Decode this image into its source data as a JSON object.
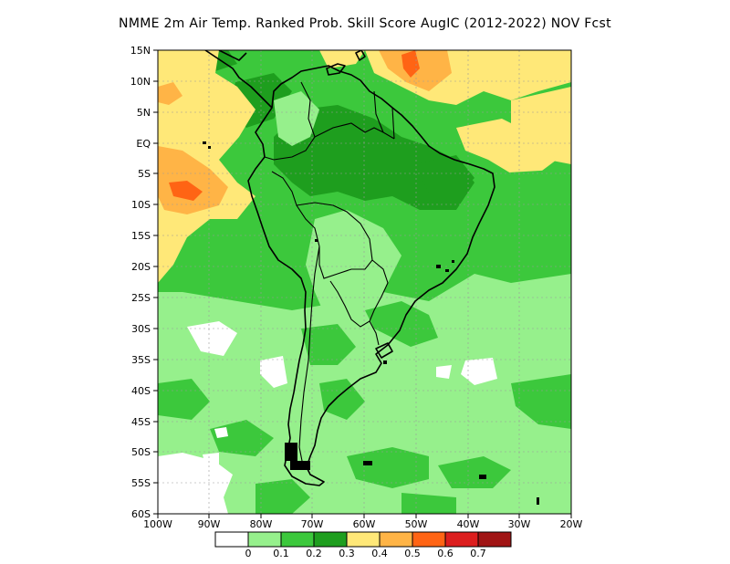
{
  "title": "NMME  2m Air Temp. Ranked Prob. Skill Score AugIC (2012-2022) NOV Fcst",
  "lat_labels": [
    "15N",
    "10N",
    "5N",
    "EQ",
    "5S",
    "10S",
    "15S",
    "20S",
    "25S",
    "30S",
    "35S",
    "40S",
    "45S",
    "50S",
    "55S",
    "60S"
  ],
  "lon_labels": [
    "100W",
    "90W",
    "80W",
    "70W",
    "60W",
    "50W",
    "40W",
    "30W",
    "20W"
  ],
  "colorbar": {
    "colors": [
      "#ffffff",
      "#96f08c",
      "#3cc83c",
      "#1e9e1e",
      "#ffe878",
      "#ffb446",
      "#ff6414",
      "#dc1e1e",
      "#a01414"
    ],
    "labels": [
      "0",
      "0.1",
      "0.2",
      "0.3",
      "0.4",
      "0.5",
      "0.6",
      "0.7"
    ]
  },
  "legend": {
    "white": "#ffffff",
    "light_green": "#96f08c",
    "green": "#3cc83c",
    "dark_green": "#1e9e1e",
    "light_yellow": "#ffe878",
    "orange": "#ffb446",
    "red_orange": "#ff6414"
  }
}
